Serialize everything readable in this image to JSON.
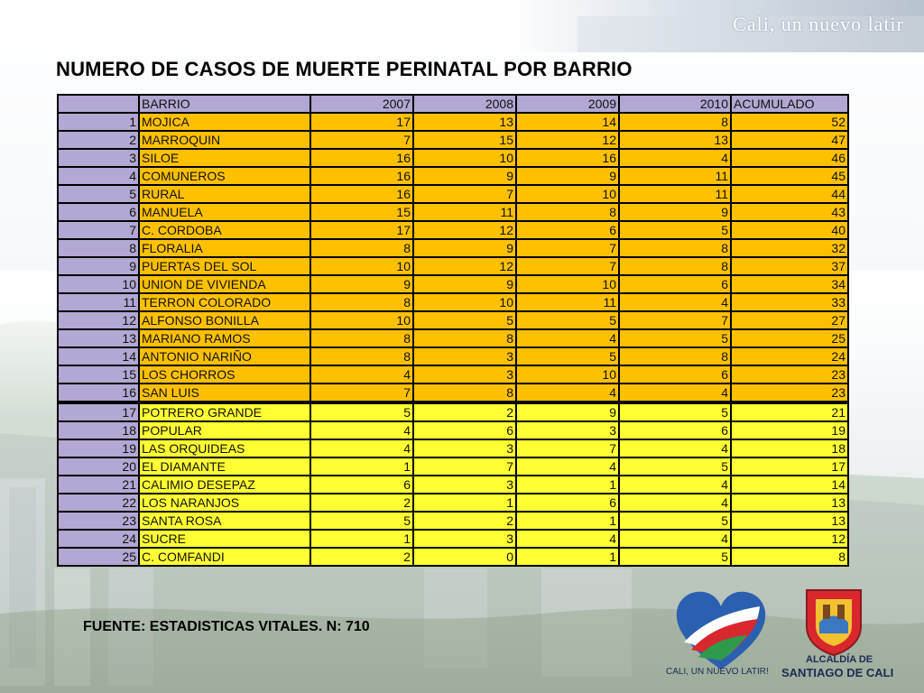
{
  "header": {
    "slogan": "Cali, un nuevo latir"
  },
  "title": "NUMERO DE CASOS DE MUERTE PERINATAL POR BARRIO",
  "table": {
    "headers": [
      "",
      "BARRIO",
      "2007",
      "2008",
      "2009",
      "2010",
      "ACUMULADO"
    ],
    "rows": [
      {
        "n": "1",
        "barrio": "MOJICA",
        "y2007": "17",
        "y2008": "13",
        "y2009": "14",
        "y2010": "8",
        "acum": "52"
      },
      {
        "n": "2",
        "barrio": "MARROQUIN",
        "y2007": "7",
        "y2008": "15",
        "y2009": "12",
        "y2010": "13",
        "acum": "47"
      },
      {
        "n": "3",
        "barrio": "SILOE",
        "y2007": "16",
        "y2008": "10",
        "y2009": "16",
        "y2010": "4",
        "acum": "46"
      },
      {
        "n": "4",
        "barrio": "COMUNEROS",
        "y2007": "16",
        "y2008": "9",
        "y2009": "9",
        "y2010": "11",
        "acum": "45"
      },
      {
        "n": "5",
        "barrio": "RURAL",
        "y2007": "16",
        "y2008": "7",
        "y2009": "10",
        "y2010": "11",
        "acum": "44"
      },
      {
        "n": "6",
        "barrio": "MANUELA",
        "y2007": "15",
        "y2008": "11",
        "y2009": "8",
        "y2010": "9",
        "acum": "43"
      },
      {
        "n": "7",
        "barrio": "C. CORDOBA",
        "y2007": "17",
        "y2008": "12",
        "y2009": "6",
        "y2010": "5",
        "acum": "40"
      },
      {
        "n": "8",
        "barrio": "FLORALIA",
        "y2007": "8",
        "y2008": "9",
        "y2009": "7",
        "y2010": "8",
        "acum": "32"
      },
      {
        "n": "9",
        "barrio": "PUERTAS DEL SOL",
        "y2007": "10",
        "y2008": "12",
        "y2009": "7",
        "y2010": "8",
        "acum": "37"
      },
      {
        "n": "10",
        "barrio": "UNION DE VIVIENDA",
        "y2007": "9",
        "y2008": "9",
        "y2009": "10",
        "y2010": "6",
        "acum": "34"
      },
      {
        "n": "11",
        "barrio": "TERRON COLORADO",
        "y2007": "8",
        "y2008": "10",
        "y2009": "11",
        "y2010": "4",
        "acum": "33"
      },
      {
        "n": "12",
        "barrio": "ALFONSO BONILLA",
        "y2007": "10",
        "y2008": "5",
        "y2009": "5",
        "y2010": "7",
        "acum": "27"
      },
      {
        "n": "13",
        "barrio": "MARIANO RAMOS",
        "y2007": "8",
        "y2008": "8",
        "y2009": "4",
        "y2010": "5",
        "acum": "25"
      },
      {
        "n": "14",
        "barrio": "ANTONIO NARIÑO",
        "y2007": "8",
        "y2008": "3",
        "y2009": "5",
        "y2010": "8",
        "acum": "24"
      },
      {
        "n": "15",
        "barrio": "LOS CHORROS",
        "y2007": "4",
        "y2008": "3",
        "y2009": "10",
        "y2010": "6",
        "acum": "23"
      },
      {
        "n": "16",
        "barrio": "SAN LUIS",
        "y2007": "7",
        "y2008": "8",
        "y2009": "4",
        "y2010": "4",
        "acum": "23"
      },
      {
        "n": "17",
        "barrio": "POTRERO GRANDE",
        "y2007": "5",
        "y2008": "2",
        "y2009": "9",
        "y2010": "5",
        "acum": "21"
      },
      {
        "n": "18",
        "barrio": "POPULAR",
        "y2007": "4",
        "y2008": "6",
        "y2009": "3",
        "y2010": "6",
        "acum": "19"
      },
      {
        "n": "19",
        "barrio": "LAS ORQUIDEAS",
        "y2007": "4",
        "y2008": "3",
        "y2009": "7",
        "y2010": "4",
        "acum": "18"
      },
      {
        "n": "20",
        "barrio": "EL DIAMANTE",
        "y2007": "1",
        "y2008": "7",
        "y2009": "4",
        "y2010": "5",
        "acum": "17"
      },
      {
        "n": "21",
        "barrio": "CALIMIO DESEPAZ",
        "y2007": "6",
        "y2008": "3",
        "y2009": "1",
        "y2010": "4",
        "acum": "14"
      },
      {
        "n": "22",
        "barrio": "LOS NARANJOS",
        "y2007": "2",
        "y2008": "1",
        "y2009": "6",
        "y2010": "4",
        "acum": "13"
      },
      {
        "n": "23",
        "barrio": "SANTA ROSA",
        "y2007": "5",
        "y2008": "2",
        "y2009": "1",
        "y2010": "5",
        "acum": "13"
      },
      {
        "n": "24",
        "barrio": "SUCRE",
        "y2007": "1",
        "y2008": "3",
        "y2009": "4",
        "y2010": "4",
        "acum": "12"
      },
      {
        "n": "25",
        "barrio": "C. COMFANDI",
        "y2007": "2",
        "y2008": "0",
        "y2009": "1",
        "y2010": "5",
        "acum": "8"
      }
    ],
    "highlight_colors": {
      "top": "#ffc000",
      "rest": "#ffff33",
      "index": "#b3a7d3"
    }
  },
  "footer": {
    "source": "FUENTE: ESTADISTICAS VITALES. N: 710"
  },
  "logos": {
    "heart_caption": "CALI, UN NUEVO LATIR!",
    "alcaldia_line1": "ALCALDÍA DE",
    "alcaldia_line2": "SANTIAGO DE CALI"
  }
}
